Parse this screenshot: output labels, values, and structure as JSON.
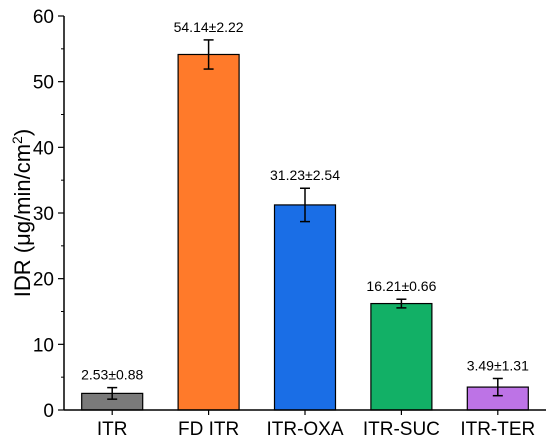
{
  "chart_data": {
    "type": "bar",
    "categories": [
      "ITR",
      "FD ITR",
      "ITR-OXA",
      "ITR-SUC",
      "ITR-TER"
    ],
    "values": [
      2.53,
      54.14,
      31.23,
      16.21,
      3.49
    ],
    "errors": [
      0.88,
      2.22,
      2.54,
      0.66,
      1.31
    ],
    "data_labels": [
      "2.53±0.88",
      "54.14±2.22",
      "31.23±2.54",
      "16.21±0.66",
      "3.49±1.31"
    ],
    "colors": [
      "#7a7a7a",
      "#ff7a2a",
      "#1a6ee6",
      "#12b066",
      "#bd73e6"
    ],
    "ylabel": {
      "prefix": "IDR (",
      "unit": "μg/min/cm",
      "superscript": "2",
      "suffix": ")"
    },
    "ylim": [
      0,
      60
    ],
    "yticks": [
      0,
      10,
      20,
      30,
      40,
      50,
      60
    ],
    "grid": false,
    "legend": "none"
  }
}
